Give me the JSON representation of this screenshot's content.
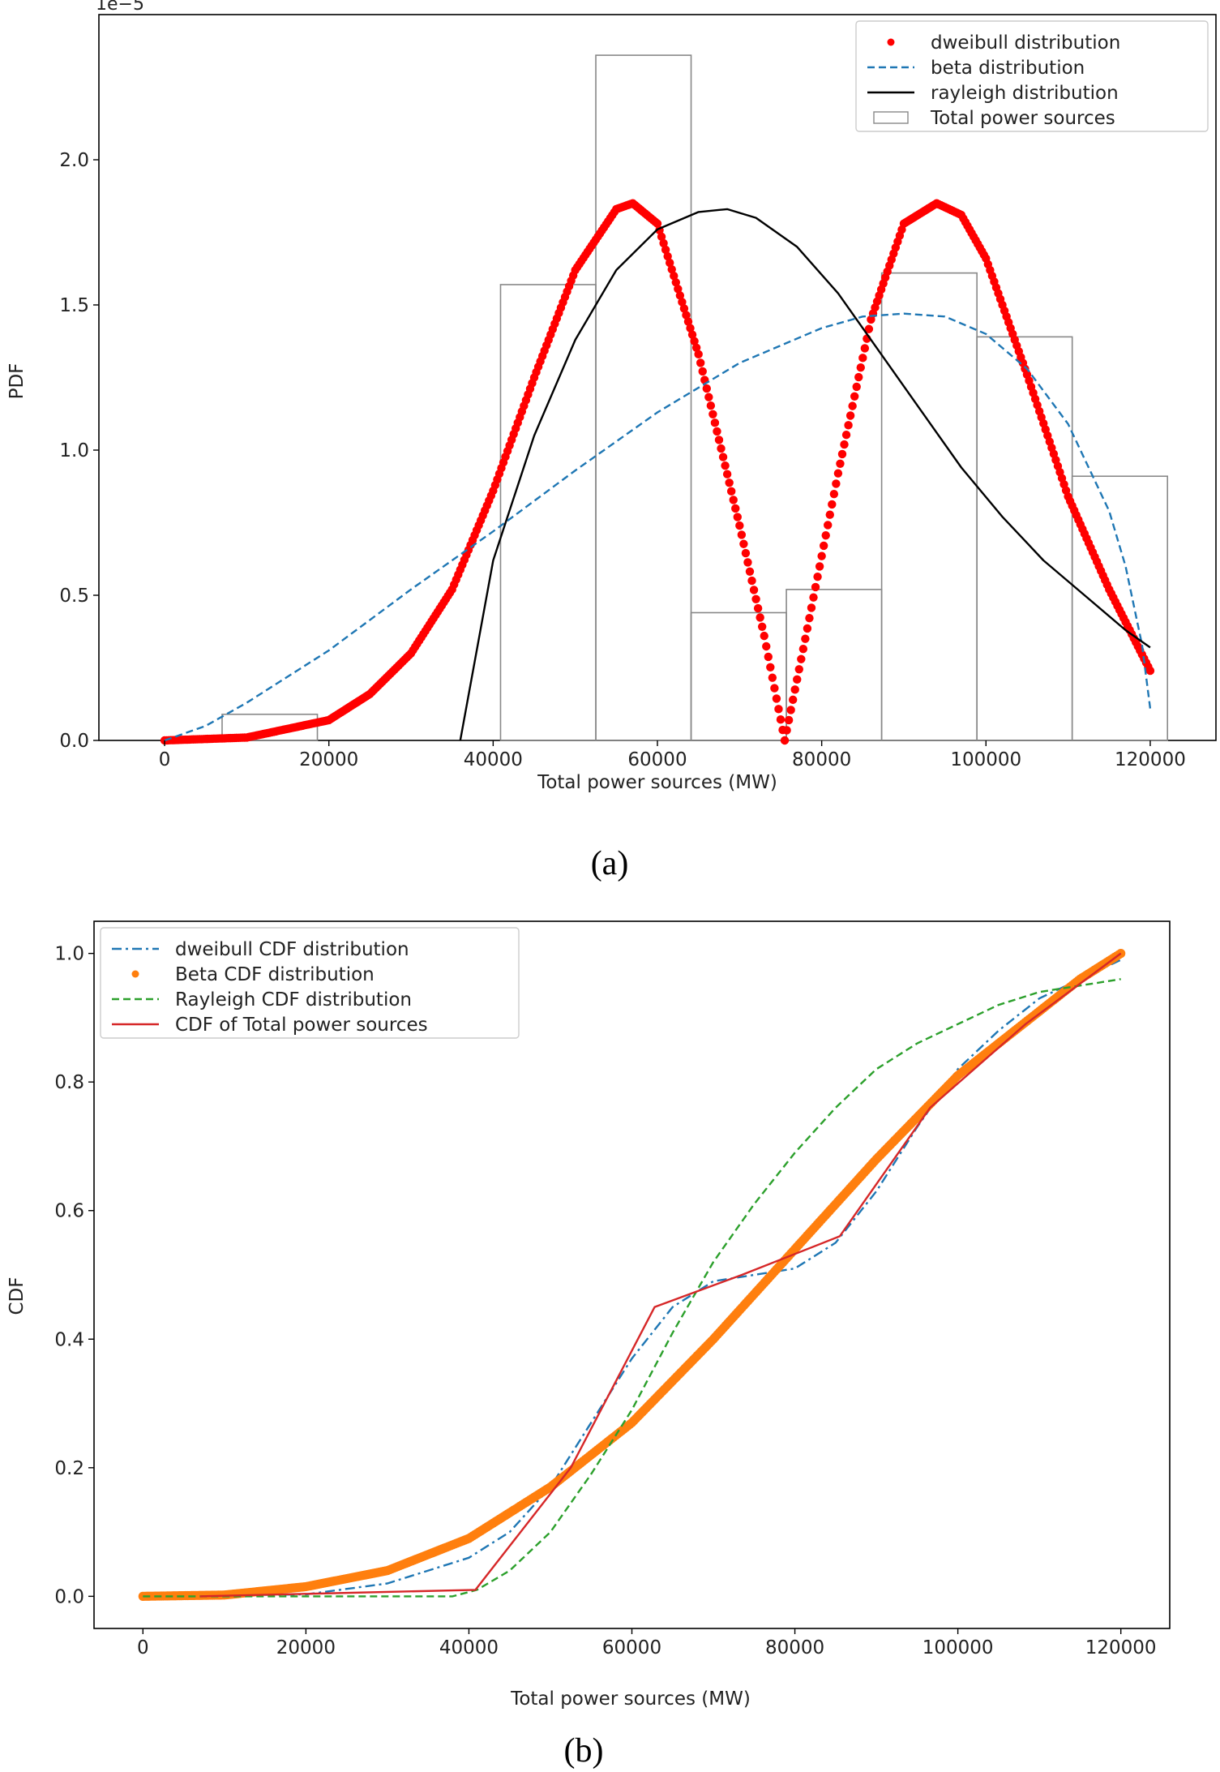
{
  "chart_data": [
    {
      "type": "line",
      "panel_caption": "(a)",
      "xlabel": "Total power sources (MW)",
      "ylabel": "PDF",
      "offset_text": "1e−5",
      "xlim": [
        -8000,
        128000
      ],
      "ylim": [
        0,
        2.5
      ],
      "y_scale_exponent": -5,
      "xticks": [
        0,
        20000,
        40000,
        60000,
        80000,
        100000,
        120000
      ],
      "yticks": [
        0.0,
        0.5,
        1.0,
        1.5,
        2.0
      ],
      "ytick_labels": [
        "0.0",
        "0.5",
        "1.0",
        "1.5",
        "2.0"
      ],
      "legend_position": "top-right",
      "grid": false,
      "histogram": {
        "name": "Total power sources",
        "color": "#888888",
        "bins": [
          {
            "x0": 7000,
            "x1": 18600,
            "value": 0.09
          },
          {
            "x0": 40900,
            "x1": 52500,
            "value": 1.57
          },
          {
            "x0": 52500,
            "x1": 64100,
            "value": 2.36
          },
          {
            "x0": 64100,
            "x1": 75700,
            "value": 0.44
          },
          {
            "x0": 75700,
            "x1": 87300,
            "value": 0.52
          },
          {
            "x0": 87300,
            "x1": 98900,
            "value": 1.61
          },
          {
            "x0": 98900,
            "x1": 110500,
            "value": 1.39
          },
          {
            "x0": 110500,
            "x1": 122100,
            "value": 0.91
          }
        ]
      },
      "series": [
        {
          "name": "dweibull distribution",
          "style": "dots",
          "color": "#ff0000",
          "x": [
            0,
            10000,
            20000,
            25000,
            30000,
            35000,
            40000,
            45000,
            50000,
            55000,
            57000,
            60000,
            65000,
            70000,
            73000,
            75500,
            78000,
            82000,
            86000,
            90000,
            94000,
            97000,
            100000,
            105000,
            110000,
            115000,
            120000
          ],
          "y": [
            0.0,
            0.01,
            0.07,
            0.16,
            0.3,
            0.52,
            0.86,
            1.25,
            1.62,
            1.83,
            1.85,
            1.78,
            1.33,
            0.74,
            0.36,
            0.0,
            0.35,
            0.92,
            1.45,
            1.78,
            1.85,
            1.81,
            1.66,
            1.26,
            0.84,
            0.52,
            0.24
          ]
        },
        {
          "name": "beta distribution",
          "style": "dashed",
          "color": "#1f77b4",
          "x": [
            0,
            5000,
            10000,
            20000,
            30000,
            40000,
            50000,
            60000,
            70000,
            80000,
            85000,
            90000,
            95000,
            100000,
            105000,
            110000,
            115000,
            117000,
            119000,
            120000
          ],
          "y": [
            0.0,
            0.05,
            0.13,
            0.31,
            0.52,
            0.72,
            0.93,
            1.13,
            1.3,
            1.42,
            1.46,
            1.47,
            1.46,
            1.4,
            1.28,
            1.09,
            0.79,
            0.6,
            0.33,
            0.11
          ]
        },
        {
          "name": "rayleigh distribution",
          "style": "solid",
          "color": "#000000",
          "x": [
            36000,
            40000,
            45000,
            50000,
            55000,
            60000,
            65000,
            68500,
            72000,
            77000,
            82000,
            87000,
            92000,
            97000,
            102000,
            107000,
            112000,
            117000,
            120000
          ],
          "y": [
            0.0,
            0.62,
            1.05,
            1.38,
            1.62,
            1.76,
            1.82,
            1.83,
            1.8,
            1.7,
            1.54,
            1.34,
            1.14,
            0.94,
            0.77,
            0.62,
            0.5,
            0.38,
            0.32
          ]
        }
      ]
    },
    {
      "type": "line",
      "panel_caption": "(b)",
      "xlabel": "Total power sources (MW)",
      "ylabel": "CDF",
      "xlim": [
        -6000,
        126000
      ],
      "ylim": [
        -0.05,
        1.05
      ],
      "xticks": [
        0,
        20000,
        40000,
        60000,
        80000,
        100000,
        120000
      ],
      "yticks": [
        0.0,
        0.2,
        0.4,
        0.6,
        0.8,
        1.0
      ],
      "ytick_labels": [
        "0.0",
        "0.2",
        "0.4",
        "0.6",
        "0.8",
        "1.0"
      ],
      "legend_position": "top-left",
      "grid": false,
      "series": [
        {
          "name": "dweibull CDF distribution",
          "style": "dashdot",
          "color": "#1f77b4",
          "x": [
            0,
            20000,
            30000,
            40000,
            45000,
            50000,
            55000,
            60000,
            65000,
            70000,
            75000,
            80000,
            85000,
            90000,
            95000,
            100000,
            105000,
            110000,
            115000,
            120000
          ],
          "y": [
            0.0,
            0.003,
            0.02,
            0.06,
            0.1,
            0.17,
            0.27,
            0.37,
            0.45,
            0.49,
            0.5,
            0.51,
            0.55,
            0.63,
            0.73,
            0.82,
            0.88,
            0.93,
            0.96,
            0.99
          ]
        },
        {
          "name": "Beta CDF distribution",
          "style": "dots",
          "color": "#ff7f0e",
          "x": [
            0,
            10000,
            20000,
            30000,
            40000,
            50000,
            60000,
            70000,
            80000,
            90000,
            100000,
            110000,
            115000,
            120000
          ],
          "y": [
            0.0,
            0.002,
            0.015,
            0.04,
            0.09,
            0.17,
            0.27,
            0.4,
            0.54,
            0.68,
            0.81,
            0.91,
            0.96,
            1.0
          ]
        },
        {
          "name": "Rayleigh CDF distribution",
          "style": "dashed",
          "color": "#2ca02c",
          "x": [
            0,
            38000,
            41000,
            45000,
            50000,
            55000,
            60000,
            65000,
            70000,
            75000,
            80000,
            85000,
            90000,
            95000,
            100000,
            105000,
            110000,
            115000,
            120000
          ],
          "y": [
            0.0,
            0.0,
            0.01,
            0.04,
            0.1,
            0.19,
            0.29,
            0.41,
            0.52,
            0.61,
            0.69,
            0.76,
            0.82,
            0.86,
            0.89,
            0.92,
            0.94,
            0.95,
            0.96
          ]
        },
        {
          "name": "CDF of Total power sources",
          "style": "solid",
          "color": "#d62728",
          "x": [
            7000,
            40800,
            52500,
            62800,
            73500,
            85500,
            96600,
            108300,
            120000
          ],
          "y": [
            0.0,
            0.01,
            0.2,
            0.45,
            0.5,
            0.56,
            0.76,
            0.89,
            1.0
          ]
        }
      ]
    }
  ]
}
